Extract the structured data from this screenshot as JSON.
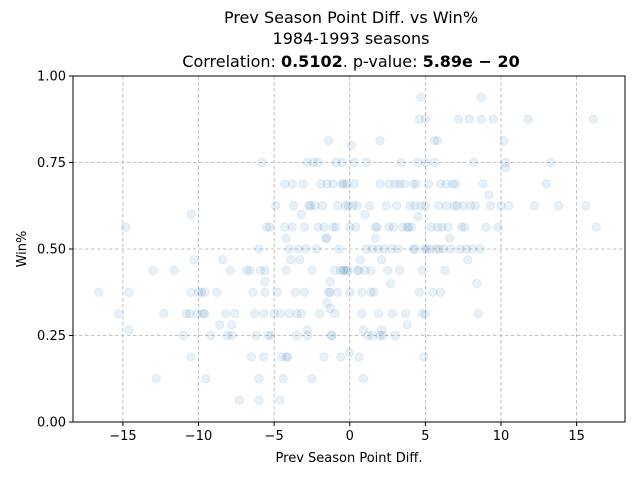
{
  "chart_data": {
    "type": "scatter",
    "title": "Prev Season Point Diff. vs Win%",
    "subtitle": "1984-1993 seasons",
    "stats": {
      "correlation_label": "Correlation: ",
      "correlation_value": "0.5102",
      "pvalue_label": ". p-value: ",
      "pvalue_value": "5.89e − 20"
    },
    "xlabel": "Prev Season Point Diff.",
    "ylabel": "Win%",
    "xlim": [
      -18.3,
      18.2
    ],
    "ylim": [
      0.0,
      1.0
    ],
    "xticks": [
      -15,
      -10,
      -5,
      0,
      5,
      10,
      15
    ],
    "xtick_labels": [
      "−15",
      "−10",
      "−5",
      "0",
      "5",
      "10",
      "15"
    ],
    "yticks": [
      0.0,
      0.25,
      0.5,
      0.75,
      1.0
    ],
    "ytick_labels": [
      "0.00",
      "0.25",
      "0.50",
      "0.75",
      "1.00"
    ],
    "grid": true,
    "marker_color": "#1f77b4",
    "points": [
      [
        -16.6,
        0.375
      ],
      [
        -15.3,
        0.313
      ],
      [
        -14.8,
        0.563
      ],
      [
        -14.6,
        0.375
      ],
      [
        -14.6,
        0.266
      ],
      [
        -13.0,
        0.438
      ],
      [
        -12.8,
        0.125
      ],
      [
        -12.3,
        0.313
      ],
      [
        -11.6,
        0.438
      ],
      [
        -11.0,
        0.25
      ],
      [
        -10.8,
        0.313
      ],
      [
        -10.6,
        0.313
      ],
      [
        -10.5,
        0.188
      ],
      [
        -10.5,
        0.6
      ],
      [
        -10.5,
        0.375
      ],
      [
        -10.3,
        0.469
      ],
      [
        -10.1,
        0.313
      ],
      [
        -10.0,
        0.375
      ],
      [
        -9.8,
        0.375
      ],
      [
        -9.7,
        0.313
      ],
      [
        -9.6,
        0.375
      ],
      [
        -9.6,
        0.313
      ],
      [
        -9.5,
        0.125
      ],
      [
        -9.2,
        0.25
      ],
      [
        -8.8,
        0.375
      ],
      [
        -8.6,
        0.281
      ],
      [
        -8.4,
        0.469
      ],
      [
        -8.2,
        0.313
      ],
      [
        -8.1,
        0.25
      ],
      [
        -7.9,
        0.438
      ],
      [
        -7.8,
        0.25
      ],
      [
        -7.8,
        0.281
      ],
      [
        -7.6,
        0.313
      ],
      [
        -7.3,
        0.063
      ],
      [
        -6.8,
        0.438
      ],
      [
        -6.6,
        0.438
      ],
      [
        -6.5,
        0.188
      ],
      [
        -6.4,
        0.375
      ],
      [
        -6.3,
        0.313
      ],
      [
        -6.2,
        0.25
      ],
      [
        -6.0,
        0.5
      ],
      [
        -6.0,
        0.125
      ],
      [
        -6.0,
        0.063
      ],
      [
        -5.9,
        0.438
      ],
      [
        -5.8,
        0.75
      ],
      [
        -5.7,
        0.313
      ],
      [
        -5.7,
        0.188
      ],
      [
        -5.6,
        0.375
      ],
      [
        -5.6,
        0.438
      ],
      [
        -5.6,
        0.406
      ],
      [
        -5.5,
        0.563
      ],
      [
        -5.4,
        0.25
      ],
      [
        -5.3,
        0.563
      ],
      [
        -5.2,
        0.25
      ],
      [
        -5.0,
        0.313
      ],
      [
        -4.9,
        0.625
      ],
      [
        -4.8,
        0.375
      ],
      [
        -4.6,
        0.063
      ],
      [
        -4.6,
        0.313
      ],
      [
        -4.5,
        0.188
      ],
      [
        -4.4,
        0.125
      ],
      [
        -4.3,
        0.688
      ],
      [
        -4.3,
        0.563
      ],
      [
        -4.2,
        0.531
      ],
      [
        -4.2,
        0.438
      ],
      [
        -4.2,
        0.188
      ],
      [
        -4.1,
        0.188
      ],
      [
        -4.0,
        0.5
      ],
      [
        -4.0,
        0.313
      ],
      [
        -3.9,
        0.469
      ],
      [
        -3.8,
        0.688
      ],
      [
        -3.8,
        0.563
      ],
      [
        -3.7,
        0.625
      ],
      [
        -3.6,
        0.375
      ],
      [
        -3.5,
        0.313
      ],
      [
        -3.5,
        0.25
      ],
      [
        -3.4,
        0.5
      ],
      [
        -3.3,
        0.469
      ],
      [
        -3.2,
        0.313
      ],
      [
        -3.2,
        0.6
      ],
      [
        -3.1,
        0.688
      ],
      [
        -3.0,
        0.563
      ],
      [
        -3.0,
        0.375
      ],
      [
        -2.9,
        0.5
      ],
      [
        -2.8,
        0.75
      ],
      [
        -2.8,
        0.25
      ],
      [
        -2.8,
        0.266
      ],
      [
        -2.7,
        0.625
      ],
      [
        -2.6,
        0.625
      ],
      [
        -2.5,
        0.125
      ],
      [
        -2.5,
        0.438
      ],
      [
        -2.4,
        0.75
      ],
      [
        -2.3,
        0.625
      ],
      [
        -2.2,
        0.5
      ],
      [
        -2.1,
        0.563
      ],
      [
        -2.1,
        0.75
      ],
      [
        -2.0,
        0.313
      ],
      [
        -1.9,
        0.688
      ],
      [
        -1.8,
        0.625
      ],
      [
        -1.7,
        0.188
      ],
      [
        -1.7,
        0.563
      ],
      [
        -1.6,
        0.531
      ],
      [
        -1.5,
        0.531
      ],
      [
        -1.5,
        0.688
      ],
      [
        -1.5,
        0.344
      ],
      [
        -1.4,
        0.813
      ],
      [
        -1.4,
        0.375
      ],
      [
        -1.3,
        0.406
      ],
      [
        -1.3,
        0.375
      ],
      [
        -1.3,
        0.328
      ],
      [
        -1.2,
        0.25
      ],
      [
        -1.2,
        0.25
      ],
      [
        -1.1,
        0.688
      ],
      [
        -1.1,
        0.563
      ],
      [
        -1.0,
        0.438
      ],
      [
        -1.0,
        0.313
      ],
      [
        -0.9,
        0.75
      ],
      [
        -0.9,
        0.563
      ],
      [
        -0.8,
        0.625
      ],
      [
        -0.8,
        0.375
      ],
      [
        -0.7,
        0.5
      ],
      [
        -0.6,
        0.438
      ],
      [
        -0.6,
        0.188
      ],
      [
        -0.5,
        0.75
      ],
      [
        -0.5,
        0.688
      ],
      [
        -0.4,
        0.688
      ],
      [
        -0.4,
        0.438
      ],
      [
        -0.4,
        0.438
      ],
      [
        -0.3,
        0.625
      ],
      [
        -0.2,
        0.688
      ],
      [
        -0.2,
        0.438
      ],
      [
        -0.1,
        0.438
      ],
      [
        -0.1,
        0.625
      ],
      [
        0.0,
        0.563
      ],
      [
        0.0,
        0.375
      ],
      [
        0.0,
        0.2
      ],
      [
        0.1,
        0.8
      ],
      [
        0.2,
        0.625
      ],
      [
        0.3,
        0.75
      ],
      [
        0.3,
        0.688
      ],
      [
        0.4,
        0.563
      ],
      [
        0.5,
        0.438
      ],
      [
        0.5,
        0.625
      ],
      [
        0.6,
        0.188
      ],
      [
        0.6,
        0.438
      ],
      [
        0.7,
        0.469
      ],
      [
        0.8,
        0.375
      ],
      [
        0.8,
        0.313
      ],
      [
        0.9,
        0.125
      ],
      [
        0.9,
        0.266
      ],
      [
        1.0,
        0.6
      ],
      [
        1.0,
        0.438
      ],
      [
        1.1,
        0.75
      ],
      [
        1.1,
        0.5
      ],
      [
        1.2,
        0.25
      ],
      [
        1.3,
        0.625
      ],
      [
        1.4,
        0.375
      ],
      [
        1.4,
        0.438
      ],
      [
        1.5,
        0.5
      ],
      [
        1.5,
        0.25
      ],
      [
        1.6,
        0.375
      ],
      [
        1.7,
        0.563
      ],
      [
        1.7,
        0.531
      ],
      [
        1.8,
        0.563
      ],
      [
        1.9,
        0.5
      ],
      [
        1.9,
        0.313
      ],
      [
        2.0,
        0.688
      ],
      [
        2.0,
        0.25
      ],
      [
        2.0,
        0.813
      ],
      [
        2.1,
        0.469
      ],
      [
        2.1,
        0.266
      ],
      [
        2.2,
        0.25
      ],
      [
        2.3,
        0.5
      ],
      [
        2.4,
        0.625
      ],
      [
        2.5,
        0.438
      ],
      [
        2.6,
        0.688
      ],
      [
        2.6,
        0.563
      ],
      [
        2.7,
        0.4
      ],
      [
        2.8,
        0.5
      ],
      [
        2.8,
        0.313
      ],
      [
        2.9,
        0.563
      ],
      [
        3.0,
        0.688
      ],
      [
        3.0,
        0.25
      ],
      [
        3.1,
        0.625
      ],
      [
        3.2,
        0.5
      ],
      [
        3.3,
        0.438
      ],
      [
        3.3,
        0.688
      ],
      [
        3.4,
        0.75
      ],
      [
        3.5,
        0.563
      ],
      [
        3.6,
        0.688
      ],
      [
        3.7,
        0.313
      ],
      [
        3.8,
        0.563
      ],
      [
        3.8,
        0.281
      ],
      [
        3.9,
        0.563
      ],
      [
        4.0,
        0.625
      ],
      [
        4.1,
        0.563
      ],
      [
        4.2,
        0.688
      ],
      [
        4.2,
        0.5
      ],
      [
        4.3,
        0.625
      ],
      [
        4.3,
        0.5
      ],
      [
        4.4,
        0.688
      ],
      [
        4.5,
        0.594
      ],
      [
        4.5,
        0.75
      ],
      [
        4.6,
        0.875
      ],
      [
        4.6,
        0.375
      ],
      [
        4.7,
        0.938
      ],
      [
        4.7,
        0.625
      ],
      [
        4.8,
        0.438
      ],
      [
        4.8,
        0.313
      ],
      [
        4.9,
        0.5
      ],
      [
        4.9,
        0.188
      ],
      [
        5.0,
        0.875
      ],
      [
        5.0,
        0.75
      ],
      [
        5.0,
        0.625
      ],
      [
        5.0,
        0.313
      ],
      [
        5.1,
        0.5
      ],
      [
        5.2,
        0.688
      ],
      [
        5.3,
        0.5
      ],
      [
        5.4,
        0.563
      ],
      [
        5.5,
        0.375
      ],
      [
        5.6,
        0.813
      ],
      [
        5.6,
        0.75
      ],
      [
        5.7,
        0.5
      ],
      [
        5.8,
        0.563
      ],
      [
        5.8,
        0.813
      ],
      [
        5.9,
        0.625
      ],
      [
        5.9,
        0.5
      ],
      [
        6.0,
        0.375
      ],
      [
        6.0,
        0.688
      ],
      [
        6.1,
        0.563
      ],
      [
        6.2,
        0.5
      ],
      [
        6.3,
        0.438
      ],
      [
        6.4,
        0.625
      ],
      [
        6.4,
        0.688
      ],
      [
        6.5,
        0.563
      ],
      [
        6.6,
        0.531
      ],
      [
        6.7,
        0.5
      ],
      [
        6.8,
        0.688
      ],
      [
        6.9,
        0.625
      ],
      [
        7.0,
        0.688
      ],
      [
        7.1,
        0.625
      ],
      [
        7.2,
        0.875
      ],
      [
        7.3,
        0.5
      ],
      [
        7.4,
        0.563
      ],
      [
        7.5,
        0.625
      ],
      [
        7.6,
        0.563
      ],
      [
        7.7,
        0.5
      ],
      [
        7.8,
        0.469
      ],
      [
        7.9,
        0.875
      ],
      [
        8.0,
        0.625
      ],
      [
        8.1,
        0.5
      ],
      [
        8.2,
        0.75
      ],
      [
        8.3,
        0.625
      ],
      [
        8.4,
        0.4
      ],
      [
        8.5,
        0.313
      ],
      [
        8.6,
        0.5
      ],
      [
        8.7,
        0.875
      ],
      [
        8.7,
        0.938
      ],
      [
        8.8,
        0.688
      ],
      [
        9.0,
        0.563
      ],
      [
        9.2,
        0.656
      ],
      [
        9.3,
        0.625
      ],
      [
        9.5,
        0.875
      ],
      [
        9.8,
        0.563
      ],
      [
        10.0,
        0.625
      ],
      [
        10.2,
        0.813
      ],
      [
        10.3,
        0.75
      ],
      [
        10.3,
        0.735
      ],
      [
        10.5,
        0.625
      ],
      [
        11.8,
        0.875
      ],
      [
        12.2,
        0.625
      ],
      [
        13.0,
        0.688
      ],
      [
        13.3,
        0.75
      ],
      [
        13.8,
        0.625
      ],
      [
        15.6,
        0.625
      ],
      [
        16.1,
        0.875
      ],
      [
        16.3,
        0.563
      ]
    ]
  }
}
